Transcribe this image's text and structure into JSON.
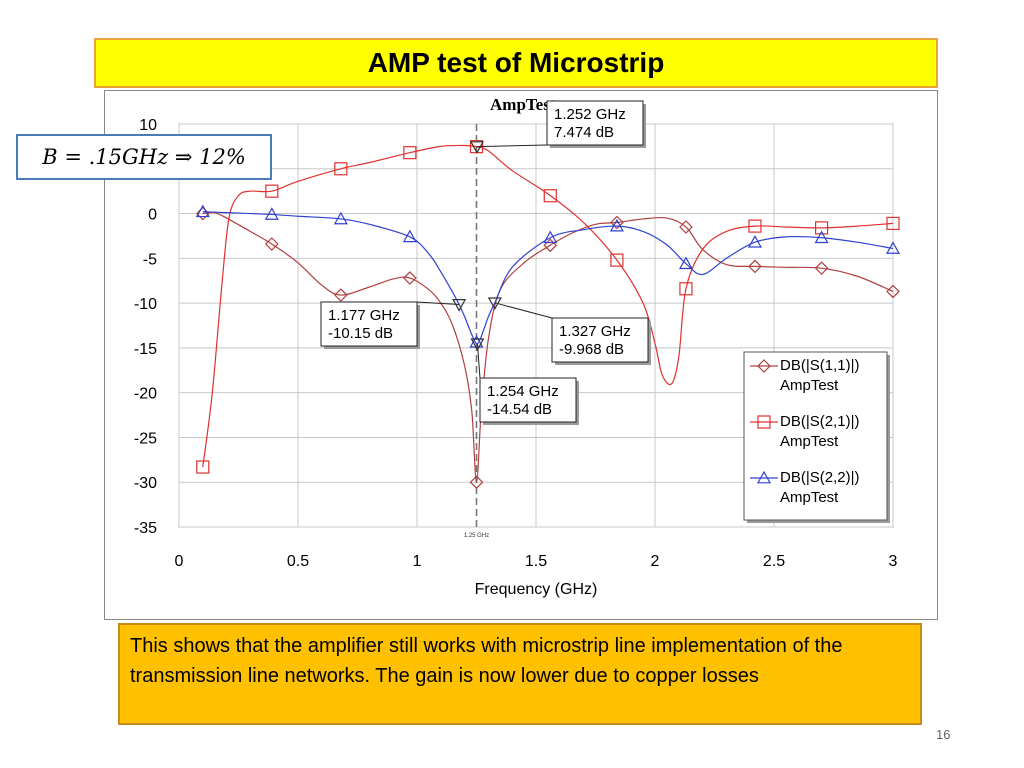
{
  "slide": {
    "title": "AMP test of Microstrip",
    "bandwidth_note": "B = .15GHz ⇒ 12%",
    "description": "This shows that the amplifier still works with microstrip line implementation of the transmission line networks. The gain is now lower due to copper losses",
    "page_number": "16"
  },
  "chart_data": {
    "type": "line",
    "title": "AmpTest",
    "xlabel": "Frequency (GHz)",
    "ylabel": "",
    "xlim": [
      0,
      3
    ],
    "ylim": [
      -35,
      10
    ],
    "x_ticks": [
      "0",
      "0.5",
      "1",
      "1.5",
      "2",
      "2.5",
      "3"
    ],
    "y_ticks": [
      "10",
      "5",
      "0",
      "-5",
      "-10",
      "-15",
      "-20",
      "-25",
      "-30",
      "-35"
    ],
    "grid": true,
    "legend_position": "right",
    "marker_line": {
      "x": 1.25,
      "label": "1.25 GHz"
    },
    "series": [
      {
        "name": "DB(|S(1,1)|)",
        "subname": "AmpTest",
        "color": "#b04040",
        "marker": "diamond",
        "x": [
          0.1,
          0.15,
          0.2,
          0.3,
          0.39,
          0.5,
          0.6,
          0.68,
          0.8,
          0.9,
          0.97,
          1.05,
          1.1,
          1.15,
          1.2,
          1.23,
          1.25,
          1.27,
          1.3,
          1.35,
          1.45,
          1.55,
          1.65,
          1.75,
          1.84,
          1.95,
          2.05,
          2.13,
          2.2,
          2.3,
          2.42,
          2.55,
          2.7,
          2.85,
          3.0
        ],
        "y": [
          0,
          0.1,
          -0.5,
          -2.0,
          -3.4,
          -5.5,
          -8.0,
          -9.1,
          -8.2,
          -7.3,
          -7.2,
          -8.5,
          -10.0,
          -12.5,
          -17.0,
          -22.0,
          -30.0,
          -22.0,
          -14.0,
          -8.5,
          -5.5,
          -3.7,
          -2.2,
          -1.2,
          -1.0,
          -0.6,
          -0.5,
          -1.5,
          -4.0,
          -5.7,
          -5.9,
          -6.0,
          -6.1,
          -7.0,
          -8.7
        ]
      },
      {
        "name": "DB(|S(2,1)|)",
        "subname": "AmpTest",
        "color": "#e03030",
        "marker": "square",
        "x": [
          0.1,
          0.14,
          0.18,
          0.21,
          0.25,
          0.3,
          0.39,
          0.5,
          0.68,
          0.8,
          0.97,
          1.1,
          1.2,
          1.25,
          1.3,
          1.4,
          1.55,
          1.7,
          1.84,
          1.95,
          2.0,
          2.03,
          2.07,
          2.1,
          2.13,
          2.2,
          2.3,
          2.42,
          2.55,
          2.7,
          2.85,
          3.0
        ],
        "y": [
          -28.3,
          -20.0,
          -8.0,
          -0.5,
          2.0,
          2.5,
          2.5,
          3.6,
          5.0,
          5.7,
          6.8,
          7.5,
          7.6,
          7.47,
          7.0,
          4.8,
          2.2,
          -1.0,
          -5.2,
          -10.0,
          -14.5,
          -18.0,
          -19.0,
          -16.0,
          -8.4,
          -4.0,
          -2.0,
          -1.4,
          -1.5,
          -1.6,
          -1.4,
          -1.1
        ]
      },
      {
        "name": "DB(|S(2,2)|)",
        "subname": "AmpTest",
        "color": "#3040d0",
        "marker": "triangle",
        "x": [
          0.1,
          0.2,
          0.3,
          0.39,
          0.5,
          0.68,
          0.8,
          0.97,
          1.05,
          1.1,
          1.15,
          1.177,
          1.2,
          1.23,
          1.254,
          1.28,
          1.3,
          1.327,
          1.4,
          1.56,
          1.7,
          1.84,
          1.95,
          2.05,
          2.13,
          2.2,
          2.3,
          2.42,
          2.55,
          2.7,
          2.85,
          3.0
        ],
        "y": [
          0.2,
          0.1,
          0.0,
          -0.1,
          -0.3,
          -0.6,
          -1.2,
          -2.6,
          -4.5,
          -6.5,
          -8.8,
          -10.15,
          -11.5,
          -13.5,
          -14.54,
          -13.0,
          -11.5,
          -9.968,
          -6.0,
          -2.7,
          -1.8,
          -1.4,
          -2.0,
          -3.5,
          -5.6,
          -6.8,
          -5.0,
          -3.2,
          -2.6,
          -2.7,
          -3.2,
          -3.9
        ]
      }
    ],
    "annotations": [
      {
        "lines": [
          "1.252 GHz",
          "7.474 dB"
        ],
        "x": 1.252,
        "y": 7.474,
        "marker": "triangle-down"
      },
      {
        "lines": [
          "1.177 GHz",
          "-10.15 dB"
        ],
        "x": 1.177,
        "y": -10.15,
        "marker": "triangle-down"
      },
      {
        "lines": [
          "1.327 GHz",
          "-9.968 dB"
        ],
        "x": 1.327,
        "y": -9.968,
        "marker": "triangle-down"
      },
      {
        "lines": [
          "1.254 GHz",
          "-14.54 dB"
        ],
        "x": 1.254,
        "y": -14.54,
        "marker": "triangle-down"
      }
    ]
  }
}
